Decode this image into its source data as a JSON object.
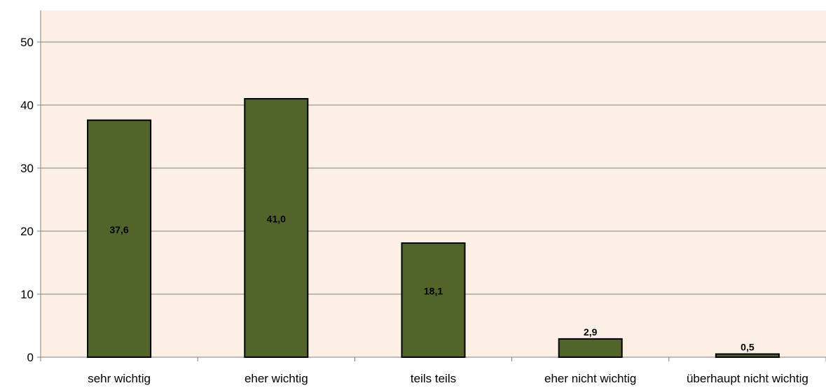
{
  "chart_data": {
    "type": "bar",
    "categories": [
      "sehr wichtig",
      "eher wichtig",
      "teils teils",
      "eher nicht wichtig",
      "überhaupt nicht wichtig"
    ],
    "values": [
      37.6,
      41.0,
      18.1,
      2.9,
      0.5
    ],
    "data_labels": [
      "37,6",
      "41,0",
      "18,1",
      "2,9",
      "0,5"
    ],
    "title": "",
    "xlabel": "",
    "ylabel": "",
    "ylim": [
      0,
      50
    ],
    "yticks": [
      "0",
      "10",
      "20",
      "30",
      "40",
      "50"
    ],
    "grid": true,
    "legend": "none",
    "colors": {
      "bar": "#51652a",
      "bar_border": "#000000",
      "plot_background": "#fcefe3",
      "grid": "#808080"
    }
  }
}
